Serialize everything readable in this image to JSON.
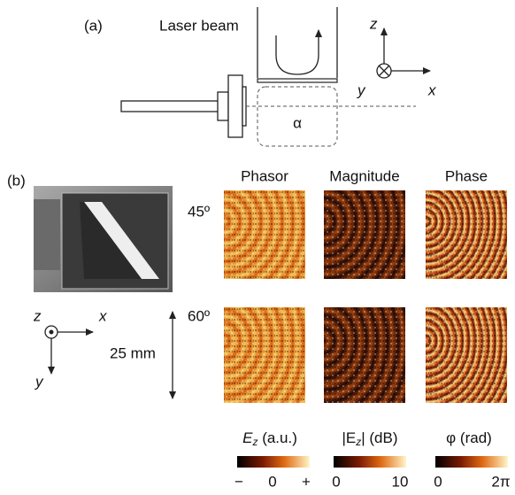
{
  "panel_a": {
    "label": "(a)",
    "laser_beam": "Laser beam",
    "alpha": "α",
    "axes": {
      "z": "z",
      "x": "x",
      "y": "y"
    }
  },
  "panel_b": {
    "label": "(b)",
    "columns": [
      "Phasor",
      "Magnitude",
      "Phase"
    ],
    "rows": [
      "45º",
      "60º"
    ],
    "axes": {
      "z": "z",
      "x": "x",
      "y": "y"
    },
    "scale": "25 mm",
    "colorbars": [
      {
        "symbol": "E",
        "subscript": "z",
        "unit": " (a.u.)",
        "ticks": [
          "−",
          "0",
          "+"
        ]
      },
      {
        "symbol": "|E",
        "subscript": "z",
        "unit": "| (dB)",
        "ticks": [
          "0",
          "10"
        ]
      },
      {
        "symbol": "φ",
        "subscript": "",
        "unit": " (rad)",
        "ticks": [
          "0",
          "2π"
        ]
      }
    ]
  }
}
